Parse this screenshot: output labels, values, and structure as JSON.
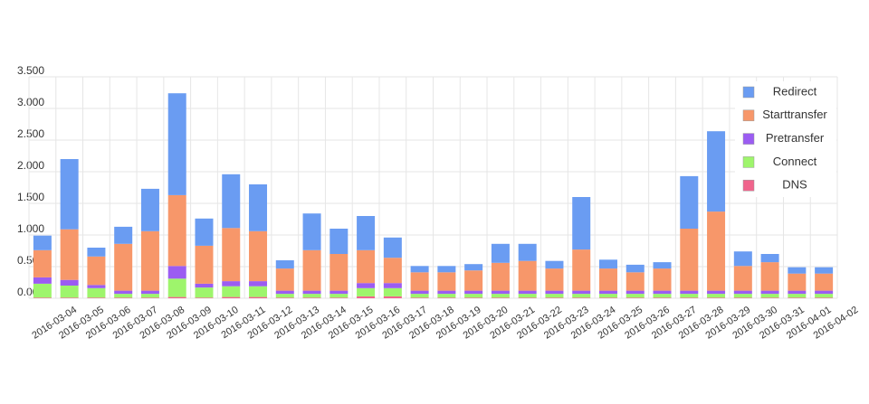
{
  "chart_data": {
    "type": "stacked_bar",
    "categories": [
      "2016-03-04",
      "2016-03-05",
      "2016-03-06",
      "2016-03-07",
      "2016-03-08",
      "2016-03-09",
      "2016-03-10",
      "2016-03-11",
      "2016-03-12",
      "2016-03-13",
      "2016-03-14",
      "2016-03-15",
      "2016-03-16",
      "2016-03-17",
      "2016-03-18",
      "2016-03-19",
      "2016-03-20",
      "2016-03-21",
      "2016-03-22",
      "2016-03-23",
      "2016-03-24",
      "2016-03-25",
      "2016-03-26",
      "2016-03-27",
      "2016-03-28",
      "2016-03-29",
      "2016-03-30",
      "2016-03-31",
      "2016-04-01",
      "2016-04-02"
    ],
    "series": [
      {
        "name": "Redirect",
        "color": "#6a9cf2",
        "values": [
          0.23,
          1.11,
          0.14,
          0.27,
          0.67,
          1.61,
          0.43,
          0.85,
          0.74,
          0.13,
          0.58,
          0.4,
          0.54,
          0.32,
          0.1,
          0.1,
          0.1,
          0.3,
          0.27,
          0.12,
          0.83,
          0.14,
          0.12,
          0.1,
          0.83,
          1.27,
          0.23,
          0.13,
          0.1,
          0.1
        ]
      },
      {
        "name": "Starttransfer",
        "color": "#f7976a",
        "values": [
          0.43,
          0.8,
          0.45,
          0.74,
          0.94,
          1.12,
          0.6,
          0.84,
          0.79,
          0.35,
          0.64,
          0.58,
          0.52,
          0.4,
          0.29,
          0.29,
          0.32,
          0.44,
          0.47,
          0.35,
          0.65,
          0.35,
          0.29,
          0.35,
          0.98,
          1.25,
          0.39,
          0.45,
          0.27,
          0.27
        ]
      },
      {
        "name": "Pretransfer",
        "color": "#9b5cf2",
        "values": [
          0.1,
          0.09,
          0.05,
          0.05,
          0.05,
          0.2,
          0.06,
          0.08,
          0.08,
          0.05,
          0.05,
          0.05,
          0.08,
          0.08,
          0.05,
          0.05,
          0.05,
          0.05,
          0.05,
          0.05,
          0.05,
          0.05,
          0.05,
          0.05,
          0.05,
          0.05,
          0.05,
          0.05,
          0.05,
          0.05
        ]
      },
      {
        "name": "Connect",
        "color": "#9ef56c",
        "values": [
          0.22,
          0.19,
          0.15,
          0.06,
          0.06,
          0.29,
          0.16,
          0.17,
          0.17,
          0.06,
          0.06,
          0.06,
          0.13,
          0.13,
          0.06,
          0.06,
          0.06,
          0.06,
          0.06,
          0.06,
          0.06,
          0.06,
          0.06,
          0.06,
          0.06,
          0.06,
          0.06,
          0.06,
          0.06,
          0.06
        ]
      },
      {
        "name": "DNS",
        "color": "#f0648c",
        "values": [
          0.01,
          0.01,
          0.01,
          0.01,
          0.01,
          0.02,
          0.01,
          0.02,
          0.02,
          0.01,
          0.01,
          0.01,
          0.03,
          0.03,
          0.01,
          0.01,
          0.01,
          0.01,
          0.01,
          0.01,
          0.01,
          0.01,
          0.01,
          0.01,
          0.01,
          0.01,
          0.01,
          0.01,
          0.01,
          0.01
        ]
      }
    ],
    "ylim": [
      0,
      3.5
    ],
    "yticks": [
      {
        "value": 0,
        "label": "0.000"
      },
      {
        "value": 0.5,
        "label": "0.500"
      },
      {
        "value": 1,
        "label": "1.000"
      },
      {
        "value": 1.5,
        "label": "1.500"
      },
      {
        "value": 2,
        "label": "2.000"
      },
      {
        "value": 2.5,
        "label": "2.500"
      },
      {
        "value": 3,
        "label": "3.000"
      },
      {
        "value": 3.5,
        "label": "3.500"
      }
    ],
    "grid": true,
    "legend": "top-right"
  }
}
